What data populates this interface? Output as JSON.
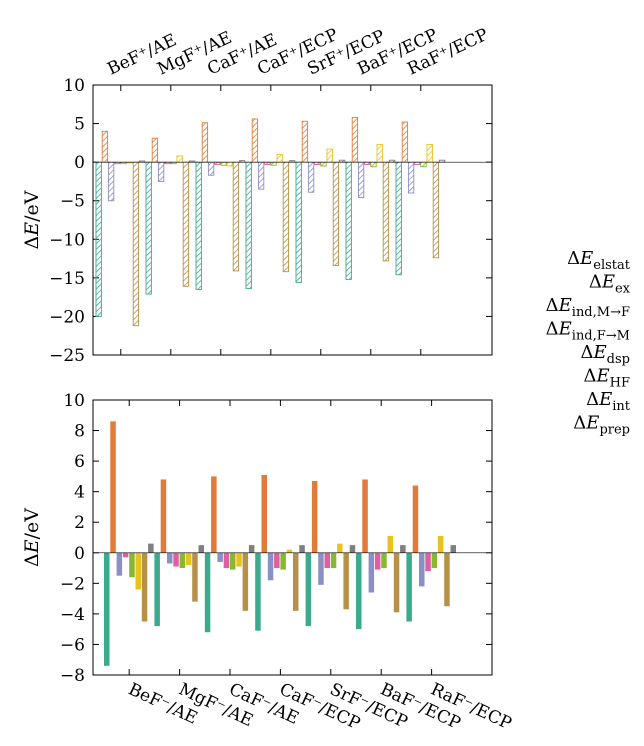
{
  "palette": {
    "elstat": "#3caa8c",
    "ex": "#e07b39",
    "ind_MF": "#8a8fc4",
    "ind_FM": "#e05fa0",
    "dsp": "#86b832",
    "HF": "#e8c21e",
    "int": "#b89148",
    "prep": "#7f7f7f"
  },
  "chart_data": [
    {
      "type": "bar",
      "style": "hatched",
      "ylabel": "ΔE/eV",
      "ylim": [
        -25,
        10
      ],
      "yticks": [
        10,
        5,
        0,
        -5,
        -10,
        -15,
        -20,
        -25
      ],
      "categories": [
        "BeF⁺/AE",
        "MgF⁺/AE",
        "CaF⁺/AE",
        "CaF⁺/ECP",
        "SrF⁺/ECP",
        "BaF⁺/ECP",
        "RaF⁺/ECP"
      ],
      "category_axis": "top",
      "series": [
        {
          "key": "elstat",
          "values": [
            -20.0,
            -17.1,
            -16.5,
            -16.4,
            -15.6,
            -15.2,
            -14.6
          ]
        },
        {
          "key": "ex",
          "values": [
            4.0,
            3.1,
            5.1,
            5.6,
            5.3,
            5.8,
            5.2
          ]
        },
        {
          "key": "ind_MF",
          "values": [
            -5.0,
            -2.5,
            -1.7,
            -3.5,
            -3.9,
            -4.6,
            -4.0
          ]
        },
        {
          "key": "ind_FM",
          "values": [
            -0.2,
            -0.2,
            -0.3,
            -0.3,
            -0.3,
            -0.3,
            -0.3
          ]
        },
        {
          "key": "dsp",
          "values": [
            -0.2,
            -0.2,
            -0.4,
            -0.4,
            -0.5,
            -0.6,
            -0.6
          ]
        },
        {
          "key": "HF",
          "values": [
            -0.1,
            0.8,
            -0.5,
            1.0,
            1.7,
            2.3,
            2.3
          ]
        },
        {
          "key": "int",
          "values": [
            -21.2,
            -16.1,
            -14.1,
            -14.2,
            -13.4,
            -12.8,
            -12.4
          ]
        },
        {
          "key": "prep",
          "values": [
            0.15,
            0.15,
            0.2,
            0.2,
            0.25,
            0.25,
            0.25
          ]
        }
      ]
    },
    {
      "type": "bar",
      "style": "solid",
      "ylabel": "ΔE/eV",
      "ylim": [
        -8,
        10
      ],
      "yticks": [
        10,
        8,
        6,
        4,
        2,
        0,
        -2,
        -4,
        -6,
        -8
      ],
      "categories": [
        "BeF⁻/AE",
        "MgF⁻/AE",
        "CaF⁻/AE",
        "CaF⁻/ECP",
        "SrF⁻/ECP",
        "BaF⁻/ECP",
        "RaF⁻/ECP"
      ],
      "category_axis": "bottom",
      "series": [
        {
          "key": "elstat",
          "values": [
            -7.4,
            -4.8,
            -5.2,
            -5.1,
            -4.8,
            -5.0,
            -4.5
          ]
        },
        {
          "key": "ex",
          "values": [
            8.6,
            4.8,
            5.0,
            5.1,
            4.7,
            4.8,
            4.4
          ]
        },
        {
          "key": "ind_MF",
          "values": [
            -1.5,
            -0.7,
            -0.6,
            -1.8,
            -2.1,
            -2.6,
            -2.2
          ]
        },
        {
          "key": "ind_FM",
          "values": [
            -0.3,
            -0.9,
            -1.0,
            -1.0,
            -1.0,
            -1.1,
            -1.2
          ]
        },
        {
          "key": "dsp",
          "values": [
            -1.6,
            -1.0,
            -1.1,
            -1.1,
            -1.0,
            -1.0,
            -1.0
          ]
        },
        {
          "key": "HF",
          "values": [
            -2.4,
            -0.8,
            -0.9,
            0.2,
            0.6,
            1.1,
            1.1
          ]
        },
        {
          "key": "int",
          "values": [
            -4.5,
            -3.2,
            -3.8,
            -3.8,
            -3.7,
            -3.9,
            -3.5
          ]
        },
        {
          "key": "prep",
          "values": [
            0.6,
            0.5,
            0.5,
            0.5,
            0.5,
            0.5,
            0.5
          ]
        }
      ]
    }
  ],
  "legend": [
    {
      "key": "elstat",
      "sub": "elstat"
    },
    {
      "key": "ex",
      "sub": "ex"
    },
    {
      "key": "ind_MF",
      "sub": "ind,M→F"
    },
    {
      "key": "ind_FM",
      "sub": "ind,F→M"
    },
    {
      "key": "dsp",
      "sub": "dsp"
    },
    {
      "key": "HF",
      "sub": "HF"
    },
    {
      "key": "int",
      "sub": "int"
    },
    {
      "key": "prep",
      "sub": "prep"
    }
  ],
  "legend_placement": "right",
  "grid": false
}
